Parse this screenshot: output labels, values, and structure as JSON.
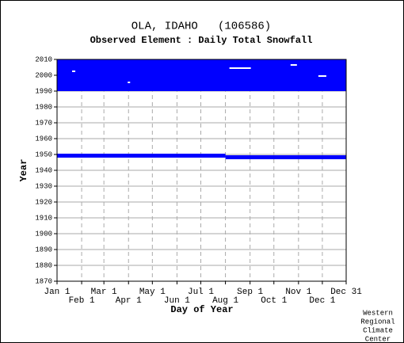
{
  "chart_data": {
    "type": "range",
    "title": "OLA, IDAHO   (106586)",
    "subtitle": "Observed Element : Daily Total Snowfall",
    "x_label": "Day of Year",
    "y_label": "Year",
    "credit": [
      "Western",
      "Regional",
      "Climate",
      "Center"
    ],
    "xlim": [
      1,
      365
    ],
    "ylim": [
      1870,
      2010
    ],
    "xticks": [
      {
        "value": 1,
        "label": "Jan 1"
      },
      {
        "value": 32,
        "label": "Feb 1"
      },
      {
        "value": 60,
        "label": "Mar 1"
      },
      {
        "value": 91,
        "label": "Apr 1"
      },
      {
        "value": 121,
        "label": "May 1"
      },
      {
        "value": 152,
        "label": "Jun 1"
      },
      {
        "value": 182,
        "label": "Jul 1"
      },
      {
        "value": 213,
        "label": "Aug 1"
      },
      {
        "value": 244,
        "label": "Sep 1"
      },
      {
        "value": 274,
        "label": "Oct 1"
      },
      {
        "value": 305,
        "label": "Nov 1"
      },
      {
        "value": 335,
        "label": "Dec 1"
      },
      {
        "value": 365,
        "label": "Dec 31"
      }
    ],
    "yticks": [
      1870,
      1880,
      1890,
      1900,
      1910,
      1920,
      1930,
      1940,
      1950,
      1960,
      1970,
      1980,
      1990,
      2000,
      2010
    ],
    "grid": true,
    "series": [
      {
        "color": "#0000ff",
        "day_start": [
          1,
          1,
          213
        ],
        "day_end": [
          365,
          213,
          365
        ],
        "year_start": [
          1990,
          1948,
          1947
        ],
        "year_end": [
          2010,
          1950.5,
          1949.5
        ]
      },
      {
        "color": "#ffffff",
        "day_start": [
          218,
          295,
          90,
          330,
          20
        ],
        "day_end": [
          245,
          303,
          93,
          340,
          24
        ],
        "year_start": [
          2004,
          2006,
          1995,
          1999,
          2002
        ],
        "year_end": [
          2005,
          2007,
          1996,
          2000,
          2003
        ]
      }
    ]
  }
}
